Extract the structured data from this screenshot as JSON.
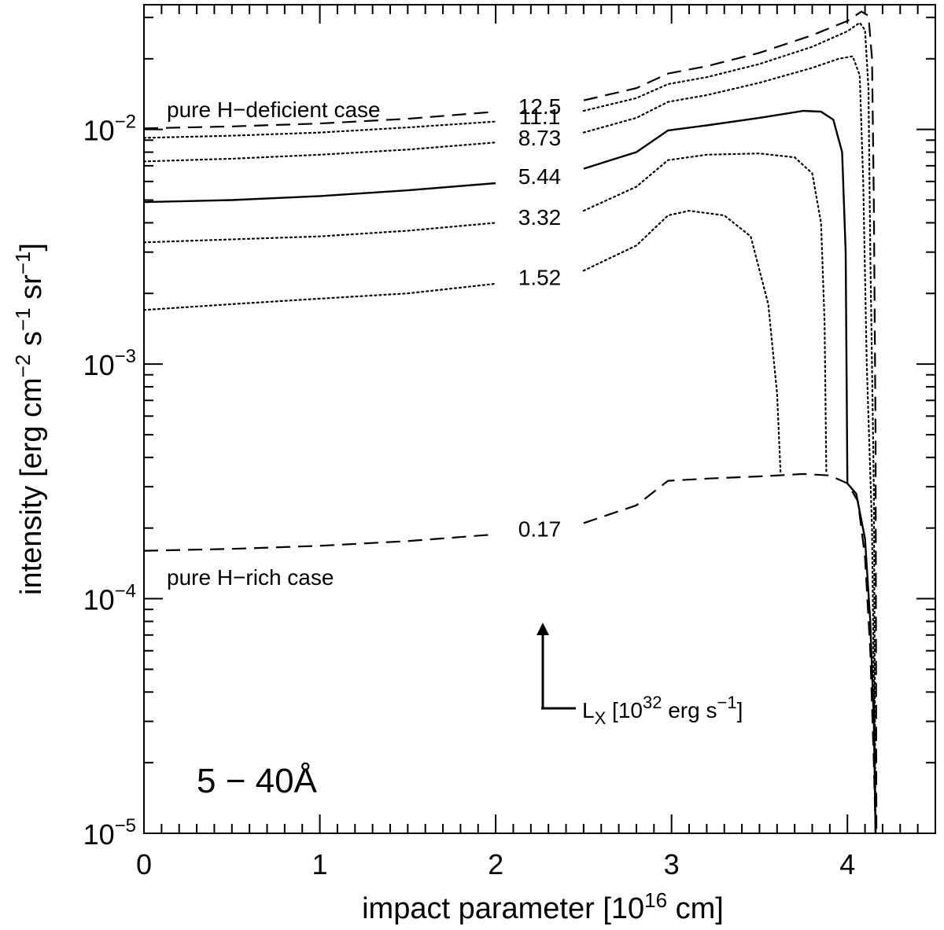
{
  "chart_data": {
    "type": "line",
    "band_label": "5 − 40Å",
    "xaxis": {
      "label_main": "impact parameter [10",
      "label_sup": "16",
      "label_end": " cm]",
      "range": [
        0,
        4.5
      ],
      "major_ticks": [
        0,
        1,
        2,
        3,
        4
      ],
      "tick_labels": [
        "0",
        "1",
        "2",
        "3",
        "4"
      ],
      "minor_step": 0.1
    },
    "yaxis": {
      "scale": "log",
      "range": [
        1e-05,
        0.034
      ],
      "label": [
        {
          "t": "intensity [erg cm"
        },
        {
          "t": "−2",
          "sup": true
        },
        {
          "t": " s"
        },
        {
          "t": "−1",
          "sup": true
        },
        {
          "t": " sr"
        },
        {
          "t": "−1",
          "sup": true
        },
        {
          "t": "]"
        }
      ],
      "decades": [
        {
          "value": 0.01,
          "base": "10",
          "exp": "−2"
        },
        {
          "value": 0.001,
          "base": "10",
          "exp": "−3"
        },
        {
          "value": 0.0001,
          "base": "10",
          "exp": "−4"
        },
        {
          "value": 1e-05,
          "base": "10",
          "exp": "−5"
        }
      ]
    },
    "annotations": {
      "deficient": "pure H−deficient case",
      "rich": "pure H−rich case",
      "lx_main": "L",
      "lx_sub": "X",
      "lx_mid": " [10",
      "lx_sup": "32",
      "lx_mid2": " erg s",
      "lx_sup2": "−1",
      "lx_end": "]"
    },
    "series": [
      {
        "name": "12.5",
        "style": "dashed",
        "label_x": 2.25,
        "points": [
          [
            0,
            0.0101
          ],
          [
            0.5,
            0.0103
          ],
          [
            1,
            0.0106
          ],
          [
            1.5,
            0.0111
          ],
          [
            2,
            0.0119
          ],
          [
            2.5,
            0.0133
          ],
          [
            2.8,
            0.015
          ],
          [
            2.98,
            0.0173
          ],
          [
            3.2,
            0.0186
          ],
          [
            3.5,
            0.0212
          ],
          [
            3.8,
            0.0252
          ],
          [
            4.0,
            0.029
          ],
          [
            4.08,
            0.0318
          ],
          [
            4.12,
            0.0305
          ],
          [
            4.14,
            0.02
          ],
          [
            4.15,
            0.005
          ],
          [
            4.16,
            0.0005
          ],
          [
            4.165,
            1e-05
          ]
        ]
      },
      {
        "name": "11.1",
        "style": "dotted",
        "label_x": 2.25,
        "points": [
          [
            0,
            0.0092
          ],
          [
            0.5,
            0.0094
          ],
          [
            1,
            0.0097
          ],
          [
            1.5,
            0.0102
          ],
          [
            2,
            0.0108
          ],
          [
            2.5,
            0.012
          ],
          [
            2.8,
            0.0136
          ],
          [
            2.98,
            0.0156
          ],
          [
            3.2,
            0.0167
          ],
          [
            3.5,
            0.019
          ],
          [
            3.8,
            0.0225
          ],
          [
            4.0,
            0.0262
          ],
          [
            4.07,
            0.0285
          ],
          [
            4.1,
            0.0265
          ],
          [
            4.12,
            0.015
          ],
          [
            4.13,
            0.003
          ],
          [
            4.15,
            0.0003
          ],
          [
            4.16,
            1e-05
          ]
        ]
      },
      {
        "name": "8.73",
        "style": "dotted",
        "label_x": 2.25,
        "points": [
          [
            0,
            0.0073
          ],
          [
            0.5,
            0.0075
          ],
          [
            1,
            0.0078
          ],
          [
            1.5,
            0.0082
          ],
          [
            2,
            0.0088
          ],
          [
            2.5,
            0.0097
          ],
          [
            2.8,
            0.0112
          ],
          [
            2.98,
            0.0131
          ],
          [
            3.2,
            0.014
          ],
          [
            3.5,
            0.0158
          ],
          [
            3.8,
            0.0183
          ],
          [
            3.95,
            0.02
          ],
          [
            4.03,
            0.0205
          ],
          [
            4.07,
            0.017
          ],
          [
            4.09,
            0.006
          ],
          [
            4.11,
            0.001
          ],
          [
            4.14,
            0.0002
          ],
          [
            4.16,
            1e-05
          ]
        ]
      },
      {
        "name": "5.44",
        "style": "solid",
        "label_x": 2.25,
        "points": [
          [
            0,
            0.0049
          ],
          [
            0.5,
            0.005
          ],
          [
            1,
            0.0052
          ],
          [
            1.5,
            0.0055
          ],
          [
            2,
            0.0059
          ],
          [
            2.5,
            0.0068
          ],
          [
            2.8,
            0.008
          ],
          [
            2.98,
            0.0099
          ],
          [
            3.2,
            0.0104
          ],
          [
            3.5,
            0.0112
          ],
          [
            3.75,
            0.012
          ],
          [
            3.85,
            0.0119
          ],
          [
            3.92,
            0.011
          ],
          [
            3.97,
            0.008
          ],
          [
            3.99,
            0.003
          ],
          [
            4.0,
            0.00031
          ],
          [
            4.05,
            0.00028
          ],
          [
            4.1,
            0.00018
          ],
          [
            4.13,
            8e-05
          ],
          [
            4.15,
            3e-05
          ],
          [
            4.16,
            1e-05
          ]
        ]
      },
      {
        "name": "3.32",
        "style": "dotted",
        "label_x": 2.25,
        "points": [
          [
            0,
            0.0033
          ],
          [
            0.5,
            0.0034
          ],
          [
            1,
            0.0035
          ],
          [
            1.5,
            0.0037
          ],
          [
            2,
            0.004
          ],
          [
            2.5,
            0.0045
          ],
          [
            2.8,
            0.0057
          ],
          [
            2.98,
            0.0074
          ],
          [
            3.2,
            0.0078
          ],
          [
            3.5,
            0.0079
          ],
          [
            3.7,
            0.0076
          ],
          [
            3.8,
            0.0065
          ],
          [
            3.85,
            0.004
          ],
          [
            3.87,
            0.0015
          ],
          [
            3.88,
            0.00035
          ]
        ]
      },
      {
        "name": "1.52",
        "style": "dotted",
        "label_x": 2.25,
        "points": [
          [
            0,
            0.0017
          ],
          [
            0.5,
            0.0018
          ],
          [
            1,
            0.0019
          ],
          [
            1.5,
            0.002
          ],
          [
            2,
            0.0022
          ],
          [
            2.5,
            0.0025
          ],
          [
            2.8,
            0.0032
          ],
          [
            2.98,
            0.0043
          ],
          [
            3.1,
            0.0045
          ],
          [
            3.3,
            0.0043
          ],
          [
            3.45,
            0.0035
          ],
          [
            3.55,
            0.0018
          ],
          [
            3.6,
            0.00075
          ],
          [
            3.62,
            0.00034
          ]
        ]
      },
      {
        "name": "0.17",
        "style": "dashed",
        "label_x": 2.25,
        "points": [
          [
            0,
            0.00016
          ],
          [
            0.5,
            0.000163
          ],
          [
            1,
            0.000168
          ],
          [
            1.5,
            0.000176
          ],
          [
            2,
            0.000188
          ],
          [
            2.5,
            0.00021
          ],
          [
            2.8,
            0.00025
          ],
          [
            2.98,
            0.000318
          ],
          [
            3.2,
            0.000325
          ],
          [
            3.5,
            0.000332
          ],
          [
            3.75,
            0.00034
          ],
          [
            3.9,
            0.000335
          ],
          [
            4.0,
            0.00031
          ],
          [
            4.06,
            0.00026
          ],
          [
            4.1,
            0.00015
          ],
          [
            4.13,
            6e-05
          ],
          [
            4.15,
            2e-05
          ],
          [
            4.16,
            1e-05
          ]
        ]
      }
    ]
  }
}
